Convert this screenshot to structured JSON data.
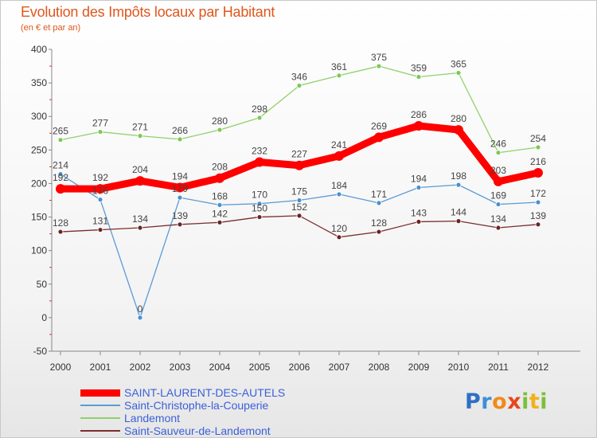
{
  "title": "Evolution des Impôts locaux par Habitant",
  "subtitle": "(en € et par an)",
  "logo": "Proxiti",
  "chart_data": {
    "type": "line",
    "title": "Evolution des Impôts locaux par Habitant",
    "subtitle": "(en € et par an)",
    "xlabel": "",
    "ylabel": "",
    "ylim": [
      -50,
      400
    ],
    "yticks": [
      -50,
      0,
      50,
      100,
      150,
      200,
      250,
      300,
      350,
      400
    ],
    "grid": false,
    "legend_position": "bottom-left",
    "x": [
      "2000",
      "2001",
      "2002",
      "2003",
      "2004",
      "2005",
      "2006",
      "2007",
      "2008",
      "2009",
      "2010",
      "2011",
      "2012"
    ],
    "series": [
      {
        "name": "SAINT-LAURENT-DES-AUTELS",
        "color": "#ff0000",
        "values": [
          192,
          192,
          204,
          194,
          208,
          232,
          227,
          241,
          269,
          286,
          280,
          203,
          216
        ]
      },
      {
        "name": "Saint-Christophe-la-Couperie",
        "color": "#5b9bd5",
        "values": [
          214,
          176,
          0,
          179,
          168,
          170,
          175,
          184,
          171,
          194,
          198,
          169,
          172
        ]
      },
      {
        "name": "Landemont",
        "color": "#8fd16b",
        "values": [
          265,
          277,
          271,
          266,
          280,
          298,
          346,
          361,
          375,
          359,
          365,
          246,
          254
        ]
      },
      {
        "name": "Saint-Sauveur-de-Landemont",
        "color": "#7a2e2e",
        "values": [
          128,
          131,
          134,
          139,
          142,
          150,
          152,
          120,
          128,
          143,
          144,
          134,
          139
        ]
      }
    ],
    "point_labels": [
      [
        "192",
        "192",
        "204",
        "194",
        "208",
        "232",
        "227",
        "241",
        "269",
        "286",
        "280",
        "203",
        "216"
      ],
      [
        "214",
        "176",
        "0",
        "179",
        "168",
        "170",
        "175",
        "184",
        "171",
        "194",
        "198",
        "169",
        "172"
      ],
      [
        "265",
        "277",
        "271",
        "266",
        "280",
        "298",
        "346",
        "361",
        "375",
        "359",
        "365",
        "246",
        "254"
      ],
      [
        "128",
        "131",
        "134",
        "139",
        "142",
        "150",
        "152",
        "120",
        "128",
        "143",
        "144",
        "134",
        "139"
      ]
    ]
  }
}
